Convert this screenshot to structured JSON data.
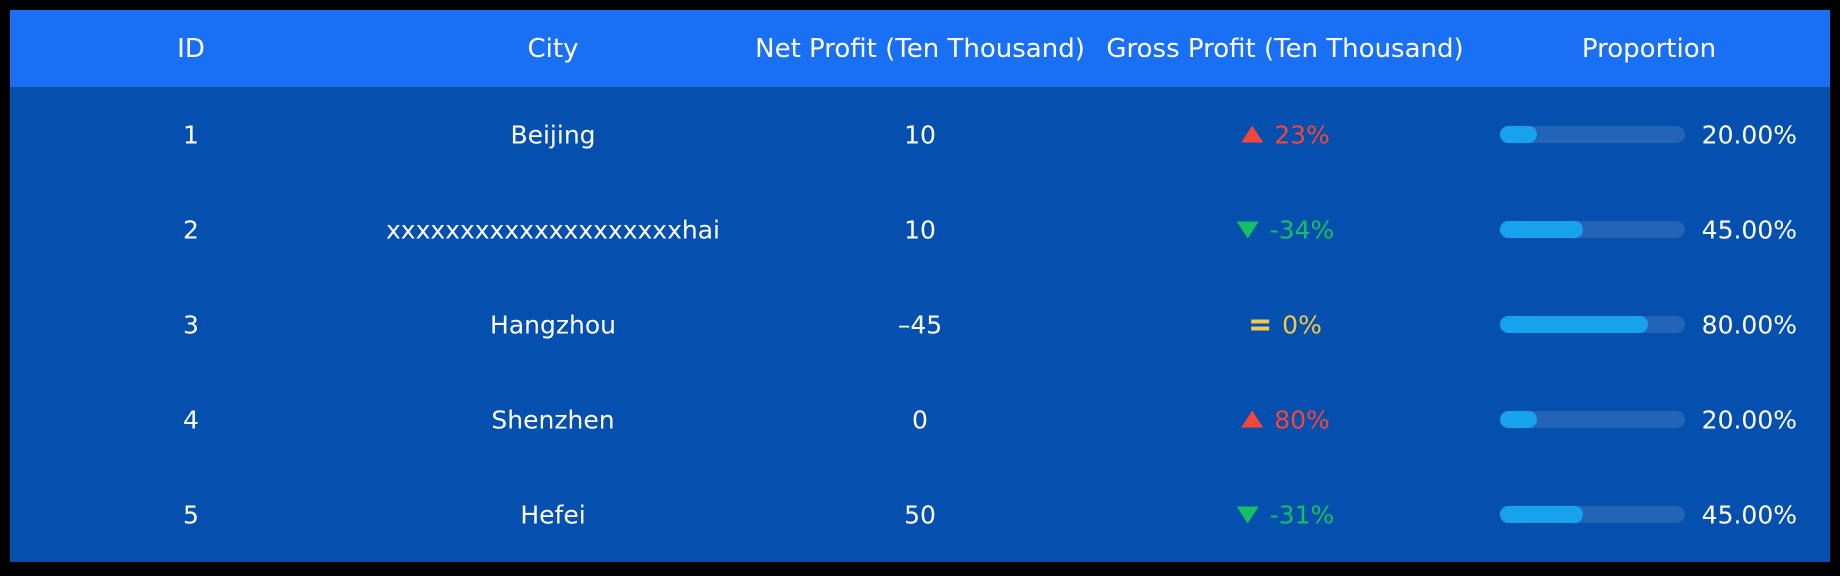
{
  "table": {
    "columns": [
      "ID",
      "City",
      "Net Profit (Ten Thousand)",
      "Gross Profit (Ten Thousand)",
      "Proportion"
    ],
    "rows": [
      {
        "id": "1",
        "city": "Beijing",
        "net_profit": "10",
        "gross_profit": {
          "label": "23%",
          "trend": "up"
        },
        "proportion": {
          "value": 20,
          "label": "20.00%"
        }
      },
      {
        "id": "2",
        "city": "xxxxxxxxxxxxxxxxxxxxhai",
        "net_profit": "10",
        "gross_profit": {
          "label": "-34%",
          "trend": "down"
        },
        "proportion": {
          "value": 45,
          "label": "45.00%"
        }
      },
      {
        "id": "3",
        "city": "Hangzhou",
        "net_profit": "–45",
        "gross_profit": {
          "label": "0%",
          "trend": "flat"
        },
        "proportion": {
          "value": 80,
          "label": "80.00%"
        }
      },
      {
        "id": "4",
        "city": "Shenzhen",
        "net_profit": "0",
        "gross_profit": {
          "label": "80%",
          "trend": "up"
        },
        "proportion": {
          "value": 20,
          "label": "20.00%"
        }
      },
      {
        "id": "5",
        "city": "Hefei",
        "net_profit": "50",
        "gross_profit": {
          "label": "-31%",
          "trend": "down"
        },
        "proportion": {
          "value": 45,
          "label": "45.00%"
        }
      }
    ]
  }
}
